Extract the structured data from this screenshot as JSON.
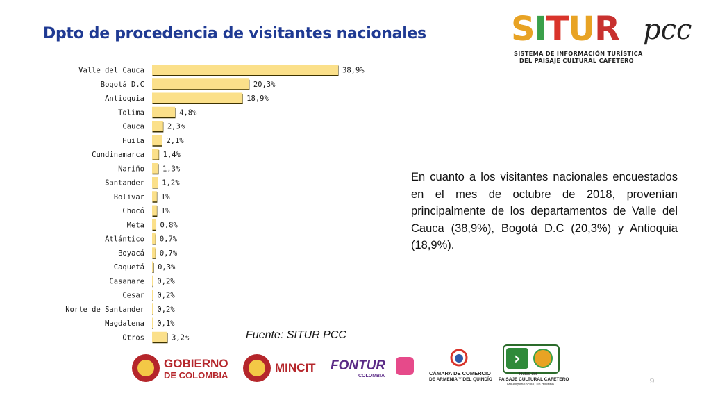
{
  "slide": {
    "title": "Dpto de procedencia de visitantes nacionales",
    "body": "En cuanto a los visitantes nacionales encuestados en el mes de octubre de 2018, provenían principalmente de los departamentos de Valle del Cauca (38,9%), Bogotá D.C (20,3%) y Antioquia (18,9%).",
    "source": "Fuente: SITUR PCC",
    "page_number": "9"
  },
  "logo": {
    "letters": [
      "S",
      "I",
      "T",
      "U",
      "R"
    ],
    "letter_colors": [
      "#e8a324",
      "#3aa04a",
      "#d9342b",
      "#e8a324",
      "#c8312f"
    ],
    "suffix": "pcc",
    "tagline_1": "SISTEMA DE INFORMACIÓN TURÍSTICA",
    "tagline_2": "DEL PAISAJE CULTURAL CAFETERO"
  },
  "footer_logos": {
    "gobierno_1": "GOBIERNO",
    "gobierno_2": "DE COLOMBIA",
    "mincit": "MINCIT",
    "fontur": "FONTUR",
    "fontur_sub": "COLOMBIA",
    "camara_1": "CÁMARA DE COMERCIO",
    "camara_2": "DE ARMENIA Y DEL QUINDÍO",
    "rutas_1": "Rutas del",
    "rutas_2": "PAISAJE CULTURAL CAFETERO",
    "rutas_3": "Mil experiencias, un destino"
  },
  "chart_data": {
    "type": "bar",
    "orientation": "horizontal",
    "categories": [
      "Valle del Cauca",
      "Bogotá D.C",
      "Antioquia",
      "Tolima",
      "Cauca",
      "Huila",
      "Cundinamarca",
      "Nariño",
      "Santander",
      "Bolivar",
      "Chocó",
      "Meta",
      "Atlántico",
      "Boyacá",
      "Caquetá",
      "Casanare",
      "Cesar",
      "Norte de Santander",
      "Magdalena",
      "Otros"
    ],
    "values": [
      38.9,
      20.3,
      18.9,
      4.8,
      2.3,
      2.1,
      1.4,
      1.3,
      1.2,
      1.0,
      1.0,
      0.8,
      0.7,
      0.7,
      0.3,
      0.2,
      0.2,
      0.2,
      0.1,
      3.2
    ],
    "data_labels": [
      "38,9%",
      "20,3%",
      "18,9%",
      "4,8%",
      "2,3%",
      "2,1%",
      "1,4%",
      "1,3%",
      "1,2%",
      "1%",
      "1%",
      "0,8%",
      "0,7%",
      "0,7%",
      "0,3%",
      "0,2%",
      "0,2%",
      "0,2%",
      "0,1%",
      "3,2%"
    ],
    "bar_color": "#fbe08a",
    "bar_shadow": "#3d3200",
    "xlim": [
      0,
      38.9
    ],
    "grid": false,
    "legend": "none"
  }
}
